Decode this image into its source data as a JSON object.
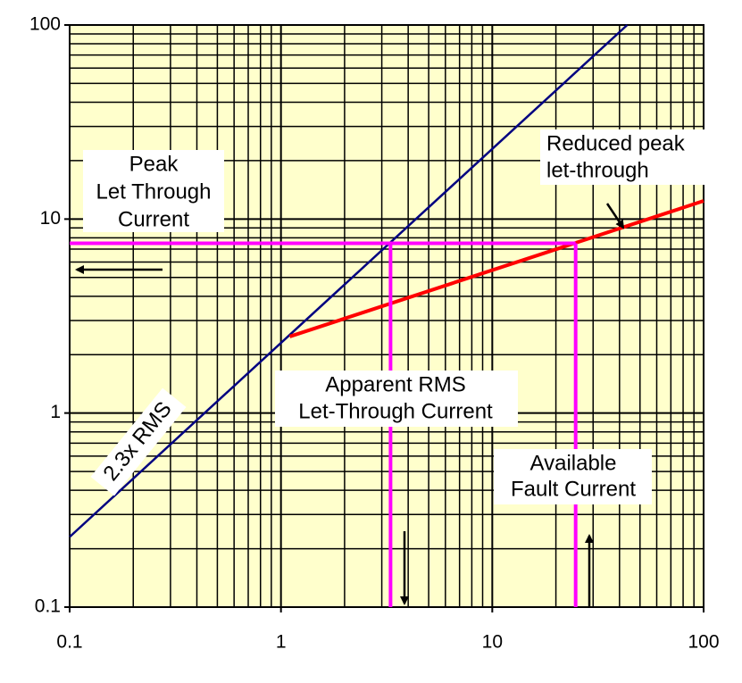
{
  "chart_data": {
    "type": "line",
    "xlim": [
      0.1,
      100
    ],
    "ylim": [
      0.1,
      100
    ],
    "xticks": [
      0.1,
      1,
      10,
      100
    ],
    "yticks": [
      0.1,
      1,
      10,
      100
    ],
    "log_x": true,
    "log_y": true,
    "grid": true,
    "minor_grid": true,
    "background": "#ffffcc",
    "series": [
      {
        "color": "#000080",
        "x": [
          0.1,
          43.5
        ],
        "values": [
          0.23,
          100
        ]
      },
      {
        "color": "#ff0000",
        "x": [
          1.1,
          100
        ],
        "values": [
          2.48,
          12.4
        ]
      },
      {
        "color": "#ff00ff",
        "x": [
          0.1,
          24.8
        ],
        "values": [
          7.5,
          7.5
        ]
      },
      {
        "color": "#ff00ff",
        "x": [
          3.3,
          3.3
        ],
        "values": [
          7.5,
          0.1
        ]
      },
      {
        "color": "#ff00ff",
        "x": [
          24.8,
          24.8
        ],
        "values": [
          7.5,
          0.1
        ]
      }
    ],
    "annotations": [
      {
        "lines": [
          "Peak",
          "Let Through",
          "Current"
        ]
      },
      {
        "lines": [
          "Reduced peak",
          "let-through"
        ]
      },
      {
        "lines": [
          "Apparent RMS",
          "Let-Through Current"
        ]
      },
      {
        "lines": [
          "Available",
          "Fault Current"
        ]
      },
      {
        "lines": [
          "2.3x RMS"
        ]
      }
    ]
  }
}
